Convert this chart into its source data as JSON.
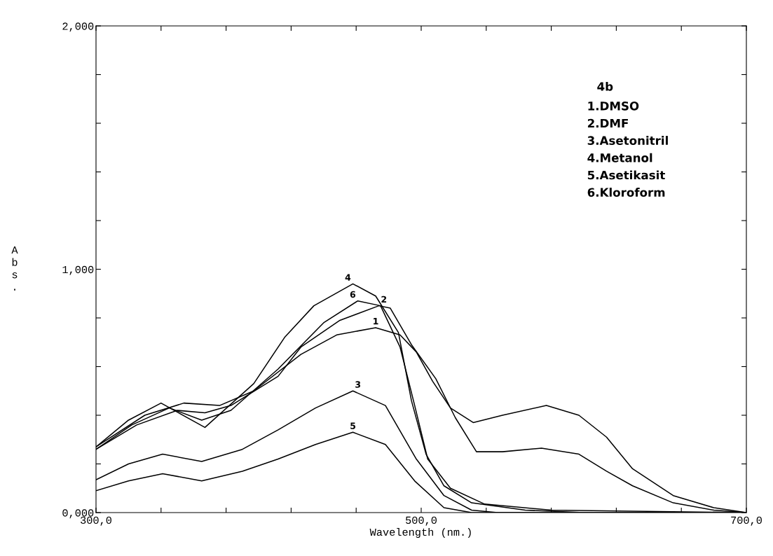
{
  "chart_data": {
    "type": "line",
    "xlabel": "Wavelength (nm.)",
    "ylabel": "Abs.",
    "xlim": [
      300,
      700
    ],
    "ylim": [
      0,
      2
    ],
    "xticks": [
      {
        "value": 300,
        "label": "300,0"
      },
      {
        "value": 340,
        "label": null
      },
      {
        "value": 380,
        "label": null
      },
      {
        "value": 420,
        "label": null
      },
      {
        "value": 460,
        "label": null
      },
      {
        "value": 500,
        "label": "500,0"
      },
      {
        "value": 540,
        "label": null
      },
      {
        "value": 580,
        "label": null
      },
      {
        "value": 620,
        "label": null
      },
      {
        "value": 660,
        "label": null
      },
      {
        "value": 700,
        "label": "700,0"
      }
    ],
    "yticks": [
      {
        "value": 0,
        "label": "0,000"
      },
      {
        "value": 0.2,
        "label": null
      },
      {
        "value": 0.4,
        "label": null
      },
      {
        "value": 0.6,
        "label": null
      },
      {
        "value": 0.8,
        "label": null
      },
      {
        "value": 1.0,
        "label": "1,000"
      },
      {
        "value": 1.2,
        "label": null
      },
      {
        "value": 1.4,
        "label": null
      },
      {
        "value": 1.6,
        "label": null
      },
      {
        "value": 1.8,
        "label": null
      },
      {
        "value": 2.0,
        "label": "2,000"
      }
    ],
    "grid": false,
    "legend": false,
    "marker": "none",
    "line_style": "solid",
    "series": [
      {
        "name": "1",
        "color": "#000000",
        "x": [
          300,
          330,
          354,
          376,
          397,
          426,
          448,
          472,
          487,
          497,
          507,
          518,
          532,
          550,
          577,
          597,
          614,
          630,
          655,
          680,
          700
        ],
        "values": [
          0.27,
          0.4,
          0.45,
          0.44,
          0.5,
          0.65,
          0.73,
          0.76,
          0.73,
          0.66,
          0.54,
          0.43,
          0.37,
          0.4,
          0.44,
          0.4,
          0.31,
          0.18,
          0.07,
          0.02,
          0.0
        ]
      },
      {
        "name": "2",
        "color": "#000000",
        "x": [
          300,
          325,
          350,
          367,
          383,
          412,
          426,
          450,
          474,
          481,
          494,
          509,
          521,
          534,
          550,
          574,
          597,
          614,
          630,
          655,
          680,
          700
        ],
        "values": [
          0.26,
          0.36,
          0.42,
          0.41,
          0.44,
          0.56,
          0.68,
          0.79,
          0.85,
          0.84,
          0.69,
          0.55,
          0.39,
          0.25,
          0.25,
          0.265,
          0.24,
          0.17,
          0.11,
          0.04,
          0.01,
          0.0
        ]
      },
      {
        "name": "3",
        "color": "#000000",
        "x": [
          300,
          320,
          341,
          365,
          390,
          412,
          435,
          458,
          478,
          497,
          514,
          531,
          547,
          600,
          700
        ],
        "values": [
          0.135,
          0.2,
          0.24,
          0.21,
          0.26,
          0.34,
          0.43,
          0.5,
          0.44,
          0.22,
          0.07,
          0.01,
          0.0,
          0.0,
          0.0
        ]
      },
      {
        "name": "4",
        "color": "#000000",
        "x": [
          300,
          320,
          340,
          367,
          397,
          416,
          434,
          458,
          472,
          486,
          494,
          503,
          514,
          531,
          564,
          600,
          700
        ],
        "values": [
          0.27,
          0.38,
          0.45,
          0.35,
          0.53,
          0.72,
          0.85,
          0.94,
          0.89,
          0.74,
          0.46,
          0.24,
          0.11,
          0.04,
          0.01,
          0.0,
          0.0
        ]
      },
      {
        "name": "5",
        "color": "#000000",
        "x": [
          300,
          320,
          341,
          365,
          390,
          412,
          435,
          458,
          478,
          496,
          514,
          531,
          600,
          700
        ],
        "values": [
          0.09,
          0.13,
          0.16,
          0.13,
          0.17,
          0.22,
          0.28,
          0.33,
          0.28,
          0.13,
          0.02,
          0.0,
          0.0,
          0.0
        ]
      },
      {
        "name": "6",
        "color": "#000000",
        "x": [
          300,
          322,
          345,
          365,
          383,
          412,
          440,
          461,
          475,
          487,
          496,
          504,
          518,
          539,
          580,
          700
        ],
        "values": [
          0.26,
          0.36,
          0.43,
          0.38,
          0.42,
          0.59,
          0.78,
          0.87,
          0.85,
          0.68,
          0.44,
          0.22,
          0.1,
          0.035,
          0.01,
          0.0
        ]
      }
    ],
    "annotations": [
      "4b",
      "1.DMSO",
      "2.DMF",
      "3.Asetonitril",
      "4.Metanol",
      "5.Asetikasit",
      "6.Kloroform"
    ]
  }
}
